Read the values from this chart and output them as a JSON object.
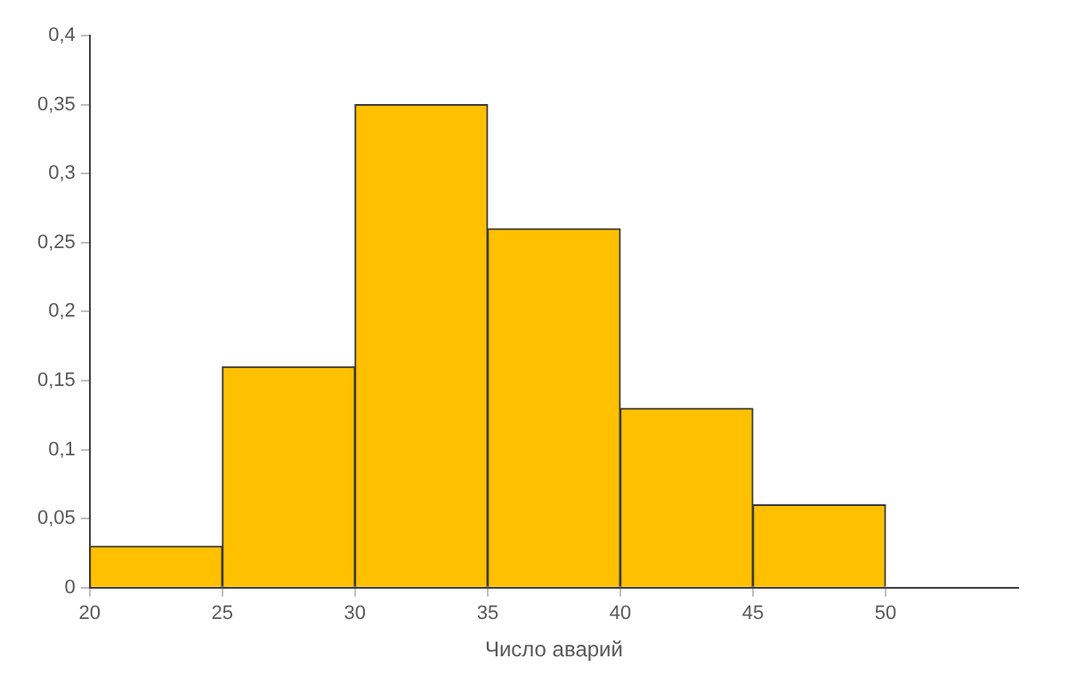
{
  "chart_data": {
    "type": "histogram",
    "xlabel": "Число аварий",
    "bins": [
      20,
      25,
      30,
      35,
      40,
      45,
      50
    ],
    "values": [
      0.03,
      0.16,
      0.35,
      0.26,
      0.13,
      0.06
    ],
    "color": "#ffc000",
    "xlim": [
      20,
      55
    ],
    "xticks": [
      20,
      25,
      30,
      35,
      40,
      45,
      50
    ],
    "ylim": [
      0,
      0.4
    ],
    "yticks": [
      0,
      {
        "value": 0.05,
        "label": "0,05"
      },
      {
        "value": 0.1,
        "label": "0,1"
      },
      {
        "value": 0.15,
        "label": "0,15"
      },
      {
        "value": 0.2,
        "label": "0,2"
      },
      {
        "value": 0.25,
        "label": "0,25"
      },
      {
        "value": 0.3,
        "label": "0,3"
      },
      {
        "value": 0.35,
        "label": "0,35"
      },
      {
        "value": 0.4,
        "label": "0,4"
      }
    ],
    "grid": false,
    "legend": false
  }
}
